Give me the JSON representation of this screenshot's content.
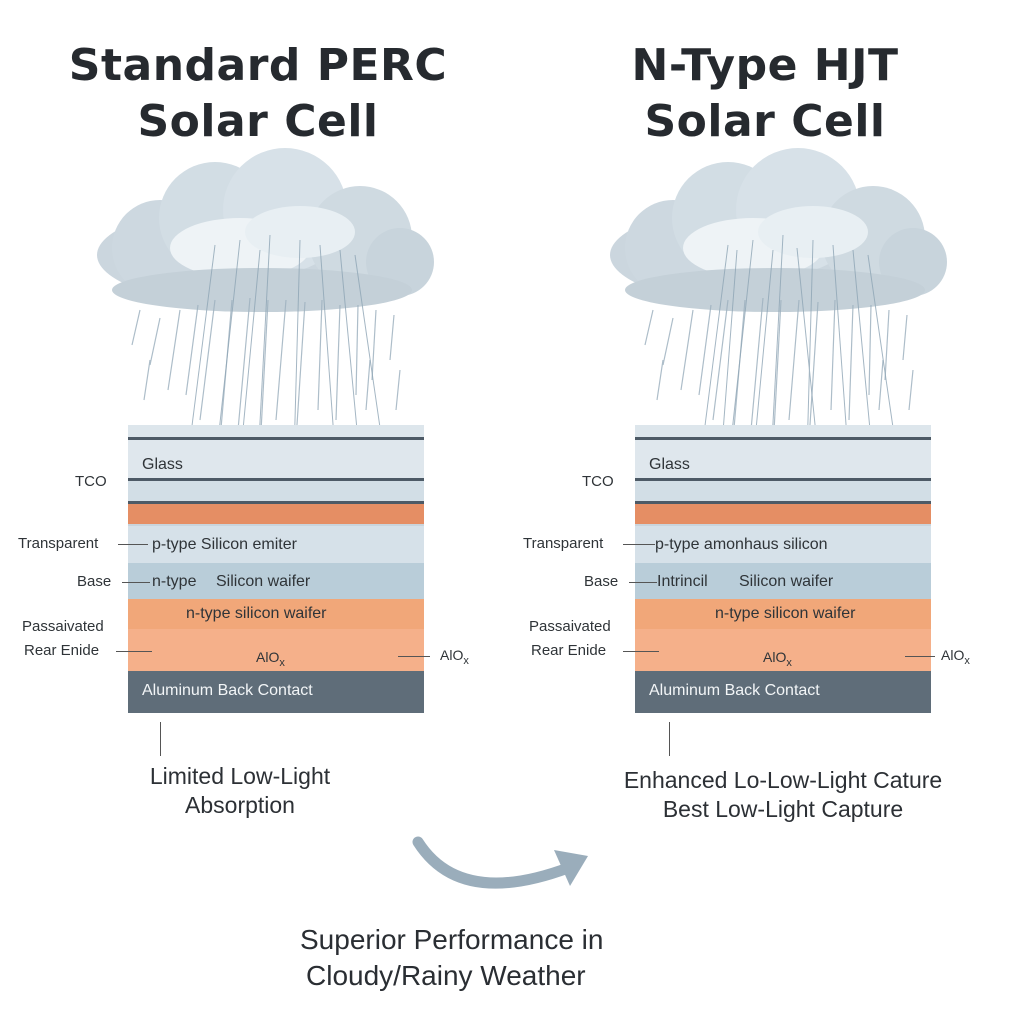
{
  "panels": [
    {
      "title_line1": "Standard PERC",
      "title_line2": "Solar Cell",
      "labels": {
        "glass": "Glass",
        "tco": "TCO",
        "transparent": "Transparent",
        "emitter": "p-type Silicon emiter",
        "base": "Base",
        "base_type": "n-type",
        "wafer": "Silicon waifer",
        "passivated": "Passaivated",
        "rear": "Rear Enide",
        "nwafer": "n-type silicon waifer",
        "aloxc": "AlOx",
        "aloxr": "AlOx",
        "contact": "Aluminum Back Contact"
      },
      "caption_line1": "Limited Low-Light",
      "caption_line2": "Absorption"
    },
    {
      "title_line1": "N-Type HJT",
      "title_line2": "Solar Cell",
      "labels": {
        "glass": "Glass",
        "tco": "TCO",
        "transparent": "Transparent",
        "emitter": "p-type amonhaus silicon",
        "base": "Base",
        "base_type": "Intrincil",
        "wafer": "Silicon waifer",
        "passivated": "Passaivated",
        "rear": "Rear Enide",
        "nwafer": "n-type silicon waifer",
        "aloxc": "AlOx",
        "aloxr": "AlOx",
        "contact": "Aluminum Back Contact"
      },
      "caption_line1": "Enhanced Lo-Low-Light Cature",
      "caption_line2": "Best Low-Light Capture"
    }
  ],
  "conclusion_line1": "Superior Performance in",
  "conclusion_line2": "Cloudy/Rainy Weather",
  "colors": {
    "glass": "#dde6ec",
    "dark_line": "#4d5a66",
    "tco_band": "#e58e64",
    "emitter": "#d4e0e8",
    "base": "#b9cdd9",
    "wafer": "#f1a779",
    "alox": "#f5b08a",
    "contact": "#5f6d79",
    "cloud": "#c9d5dd",
    "arrow": "#9aadbb"
  }
}
